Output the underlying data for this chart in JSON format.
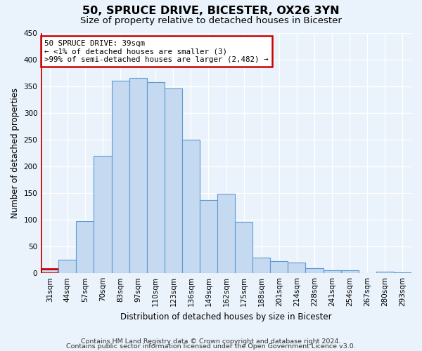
{
  "title": "50, SPRUCE DRIVE, BICESTER, OX26 3YN",
  "subtitle": "Size of property relative to detached houses in Bicester",
  "xlabel": "Distribution of detached houses by size in Bicester",
  "ylabel": "Number of detached properties",
  "bin_labels": [
    "31sqm",
    "44sqm",
    "57sqm",
    "70sqm",
    "83sqm",
    "97sqm",
    "110sqm",
    "123sqm",
    "136sqm",
    "149sqm",
    "162sqm",
    "175sqm",
    "188sqm",
    "201sqm",
    "214sqm",
    "228sqm",
    "241sqm",
    "254sqm",
    "267sqm",
    "280sqm",
    "293sqm"
  ],
  "bar_heights": [
    8,
    25,
    98,
    220,
    360,
    365,
    357,
    345,
    250,
    137,
    148,
    96,
    29,
    22,
    20,
    10,
    5,
    5,
    0,
    3,
    2
  ],
  "bar_color": "#c5d9f0",
  "bar_edge_color": "#5b9bd5",
  "highlight_bar_index": 0,
  "highlight_color": "#cc0000",
  "ylim": [
    0,
    450
  ],
  "yticks": [
    0,
    50,
    100,
    150,
    200,
    250,
    300,
    350,
    400,
    450
  ],
  "annotation_title": "50 SPRUCE DRIVE: 39sqm",
  "annotation_line1": "← <1% of detached houses are smaller (3)",
  "annotation_line2": ">99% of semi-detached houses are larger (2,482) →",
  "annotation_box_color": "#ffffff",
  "annotation_box_edge_color": "#cc0000",
  "footer_line1": "Contains HM Land Registry data © Crown copyright and database right 2024.",
  "footer_line2": "Contains public sector information licensed under the Open Government Licence v3.0.",
  "background_color": "#eaf2fb",
  "grid_color": "#ffffff",
  "title_fontsize": 11.5,
  "subtitle_fontsize": 9.5,
  "axis_label_fontsize": 8.5,
  "tick_fontsize": 7.5,
  "footer_fontsize": 6.8
}
